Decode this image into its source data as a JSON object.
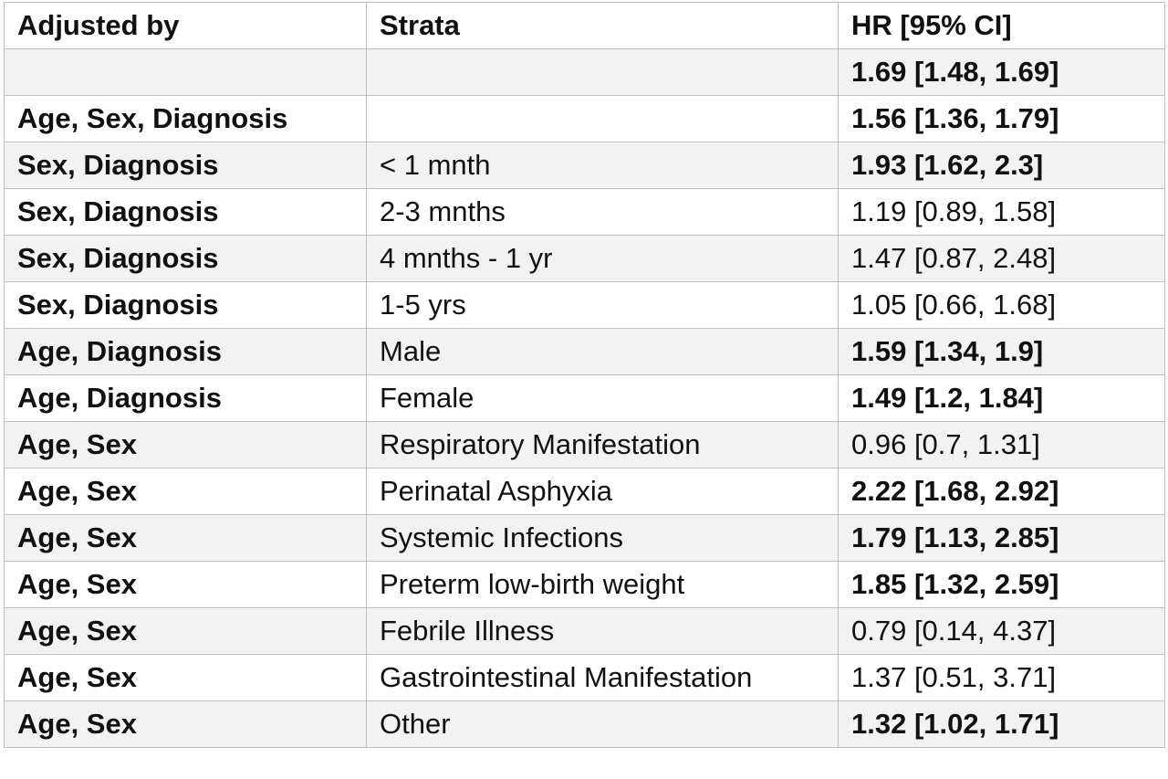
{
  "table": {
    "headers": [
      "Adjusted by",
      "Strata",
      "HR [95% CI]"
    ],
    "rows": [
      {
        "adjusted_by": "",
        "strata": "",
        "hr": "1.69  [1.48, 1.69]",
        "significant": true
      },
      {
        "adjusted_by": "Age, Sex, Diagnosis",
        "strata": "",
        "hr": "1.56 [1.36, 1.79]",
        "significant": true
      },
      {
        "adjusted_by": "Sex, Diagnosis",
        "strata": "< 1 mnth",
        "hr": "1.93 [1.62, 2.3]",
        "significant": true
      },
      {
        "adjusted_by": "Sex, Diagnosis",
        "strata": "2-3 mnths",
        "hr": "1.19 [0.89, 1.58]",
        "significant": false
      },
      {
        "adjusted_by": "Sex, Diagnosis",
        "strata": "4 mnths - 1 yr",
        "hr": "1.47 [0.87, 2.48]",
        "significant": false
      },
      {
        "adjusted_by": "Sex, Diagnosis",
        "strata": "1-5 yrs",
        "hr": "1.05 [0.66, 1.68]",
        "significant": false
      },
      {
        "adjusted_by": "Age, Diagnosis",
        "strata": "Male",
        "hr": "1.59 [1.34, 1.9]",
        "significant": true
      },
      {
        "adjusted_by": "Age, Diagnosis",
        "strata": "Female",
        "hr": "1.49 [1.2, 1.84]",
        "significant": true
      },
      {
        "adjusted_by": "Age, Sex",
        "strata": "Respiratory Manifestation",
        "hr": "0.96 [0.7, 1.31]",
        "significant": false
      },
      {
        "adjusted_by": "Age, Sex",
        "strata": "Perinatal Asphyxia",
        "hr": "2.22 [1.68, 2.92]",
        "significant": true
      },
      {
        "adjusted_by": "Age, Sex",
        "strata": "Systemic Infections",
        "hr": "1.79 [1.13, 2.85]",
        "significant": true
      },
      {
        "adjusted_by": "Age, Sex",
        "strata": "Preterm low-birth weight",
        "hr": "1.85 [1.32, 2.59]",
        "significant": true
      },
      {
        "adjusted_by": "Age, Sex",
        "strata": "Febrile Illness",
        "hr": "0.79 [0.14, 4.37]",
        "significant": false
      },
      {
        "adjusted_by": "Age, Sex",
        "strata": "Gastrointestinal Manifestation",
        "hr": "1.37 [0.51, 3.71]",
        "significant": false
      },
      {
        "adjusted_by": "Age, Sex",
        "strata": "Other",
        "hr": "1.32 [1.02, 1.71]",
        "significant": true
      }
    ]
  },
  "colors": {
    "border": "#bfbfbf",
    "shaded_row": "#f2f2f2",
    "text": "#111111"
  }
}
